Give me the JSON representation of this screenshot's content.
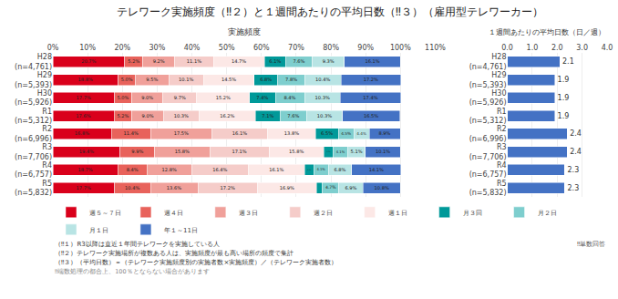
{
  "chart_data": [
    {
      "type": "bar",
      "title": "テレワーク実施頻度（‼２）と１週間あたりの平均日数（‼３）（雇用型テレワーカー）",
      "subtitle": "実施頻度",
      "orientation": "horizontal",
      "stacked": true,
      "categories": [
        "H28\n(n=4,761)",
        "H29\n(n=5,393)",
        "H30\n(n=5,926)",
        "R1\n(n=5,312)",
        "R2\n(n=6,996)",
        "R3\n(n=7,706)",
        "R4\n(n=6,757)",
        "R5\n(n=5,832)"
      ],
      "series": [
        {
          "name": "週５～７日",
          "color": "#d9001b",
          "values": [
            20.7,
            18.8,
            17.7,
            17.6,
            16.8,
            19.4,
            18.7,
            17.7
          ],
          "value_labels": [
            "20.7%",
            "18.8%",
            "17.7%",
            "17.6%",
            "16.8%",
            "19.4%",
            "18.7%",
            "17.7%"
          ]
        },
        {
          "name": "週４日",
          "color": "#e8625b",
          "values": [
            5.2,
            5.0,
            5.0,
            5.2,
            11.4,
            9.9,
            8.4,
            10.4
          ],
          "value_labels": [
            "5.2%",
            "5.0%",
            "5.0%",
            "5.2%",
            "11.4%",
            "9.9%",
            "8.4%",
            "10.4%"
          ]
        },
        {
          "name": "週３日",
          "color": "#f0a09a",
          "values": [
            9.2,
            9.5,
            9.0,
            9.0,
            17.5,
            15.8,
            12.8,
            13.6
          ],
          "value_labels": [
            "9.2%",
            "9.5%",
            "9.0%",
            "9.0%",
            "17.5%",
            "15.8%",
            "12.8%",
            "13.6%"
          ]
        },
        {
          "name": "週２日",
          "color": "#f5ccc9",
          "values": [
            11.1,
            10.1,
            9.7,
            10.3,
            16.1,
            17.1,
            16.4,
            17.2
          ],
          "value_labels": [
            "11.1%",
            "10.1%",
            "9.7%",
            "10.3%",
            "16.1%",
            "17.1%",
            "16.4%",
            "17.2%"
          ]
        },
        {
          "name": "週１日",
          "color": "#fce8e6",
          "values": [
            14.7,
            14.5,
            15.2,
            16.2,
            13.8,
            15.8,
            16.1,
            16.9
          ],
          "value_labels": [
            "14.7%",
            "14.5%",
            "15.2%",
            "16.2%",
            "13.8%",
            "15.8%",
            "16.1%",
            "16.9%"
          ]
        },
        {
          "name": "月３回",
          "color": "#009999",
          "values": [
            6.1,
            6.8,
            7.4,
            7.1,
            6.5,
            2.7,
            2.7,
            1.8
          ],
          "value_labels": [
            "6.1%",
            "6.8%",
            "7.4%",
            "7.1%",
            "6.5%",
            "2.7%",
            "2.7%",
            null
          ]
        },
        {
          "name": "月２日",
          "color": "#7ecece",
          "values": [
            7.6,
            7.8,
            8.4,
            7.6,
            4.5,
            4.1,
            4.1,
            4.7
          ],
          "value_labels": [
            "7.6%",
            "7.8%",
            "8.4%",
            "7.6%",
            "4.5%",
            "4.1%",
            "4.1%",
            "4.7%"
          ]
        },
        {
          "name": "月１日",
          "color": "#b8e4e4",
          "values": [
            9.3,
            10.4,
            10.3,
            10.3,
            4.4,
            5.1,
            6.8,
            6.9
          ],
          "value_labels": [
            "9.3%",
            "10.4%",
            "10.3%",
            "10.3%",
            "4.4%",
            "5.1%",
            "6.8%",
            "6.9%"
          ]
        },
        {
          "name": "年１～11日",
          "color": "#4472c4",
          "values": [
            16.1,
            17.2,
            17.4,
            16.5,
            8.9,
            10.1,
            14.1,
            10.8
          ],
          "value_labels": [
            "16.1%",
            "17.2%",
            "17.4%",
            "16.5%",
            "8.9%",
            "10.1%",
            "14.1%",
            "10.8%"
          ]
        }
      ],
      "xlim": [
        0,
        110
      ],
      "xticks": [
        {
          "value": 0,
          "label": "0%"
        },
        {
          "value": 10,
          "label": "10%"
        },
        {
          "value": 20,
          "label": "20%"
        },
        {
          "value": 30,
          "label": "30%"
        },
        {
          "value": 40,
          "label": "40%"
        },
        {
          "value": 50,
          "label": "50%"
        },
        {
          "value": 60,
          "label": "60%"
        },
        {
          "value": 70,
          "label": "70%"
        },
        {
          "value": 80,
          "label": "80%"
        },
        {
          "value": 90,
          "label": "90%"
        },
        {
          "value": 100,
          "label": "100%"
        },
        {
          "value": 110,
          "label": "110%"
        }
      ],
      "grid": true,
      "legend": "bottom",
      "data_labels": true,
      "annotations": [
        "（‼１）R3以降は直近１年間テレワークを実施している人",
        "（‼２）テレワーク実施場所が複数ある人は、実施頻度が最も高い場所の頻度で集計",
        "（‼３）（平均日数）＝（テレワーク実施頻度別の実施者数×実施頻度）／（テレワーク実施者数）",
        "‼端数処理の都合上、100％とならない場合があります"
      ]
    },
    {
      "type": "bar",
      "subtitle": "１週間あたりの平均日数（日／週）",
      "orientation": "horizontal",
      "categories": [
        "H28\n(n=4,761)",
        "H29\n(n=5,393)",
        "H30\n(n=5,926)",
        "R1\n(n=5,312)",
        "R2\n(n=6,996)",
        "R3\n(n=7,706)",
        "R4\n(n=6,757)",
        "R5\n(n=5,832)"
      ],
      "values": [
        2.1,
        1.9,
        1.9,
        1.9,
        2.4,
        2.4,
        2.3,
        2.3
      ],
      "color": "#4472c4",
      "xlim": [
        0,
        4.0
      ],
      "xticks": [
        {
          "value": 0,
          "label": "0.0"
        },
        {
          "value": 1,
          "label": "1.0"
        },
        {
          "value": 2,
          "label": "2.0"
        },
        {
          "value": 3,
          "label": "3.0"
        },
        {
          "value": 4,
          "label": "4.0"
        }
      ],
      "grid": true,
      "data_labels": true,
      "annotations": [
        "‼単数回答"
      ]
    }
  ]
}
